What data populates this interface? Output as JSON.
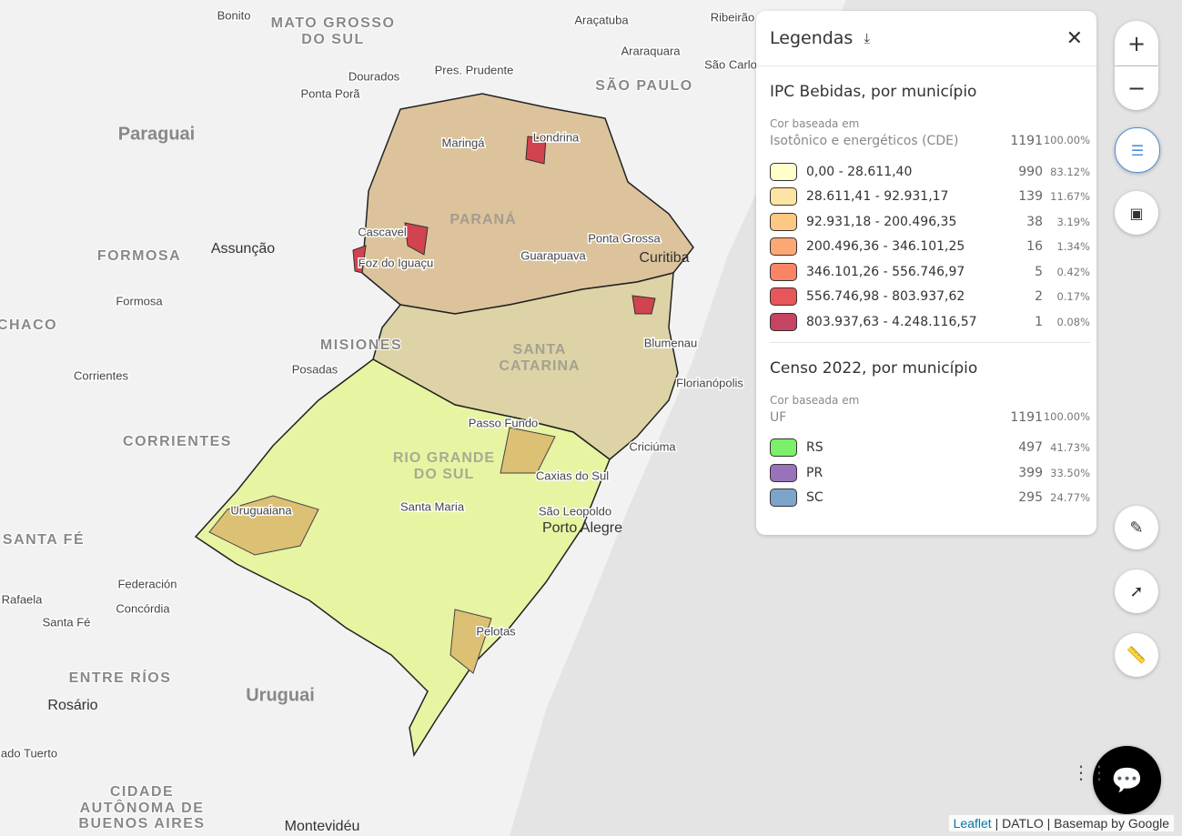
{
  "map": {
    "labels": [
      "Bonito",
      "MATO GROSSO",
      "DO SUL",
      "Araçatuba",
      "Ribeirão",
      "Araraquara",
      "São Carlo",
      "Dourados",
      "Pres. Prudente",
      "Ponta Porã",
      "SÃO PAULO",
      "Paraguai",
      "Assunção",
      "FORMOSA",
      "Formosa",
      "CHACO",
      "MISIONES",
      "Posadas",
      "Corrientes",
      "CORRIENTES",
      "SANTA FÉ",
      "Federación",
      "Concórdia",
      "Rafaela",
      "Santa Fé",
      "ENTRE RÍOS",
      "Rosário",
      "Uruguai",
      "ado Tuerto",
      "CIDADE",
      "AUTÔNOMA DE",
      "BUENOS AIRES",
      "Montevidéu",
      "Maringá",
      "Londrina",
      "Cascavel",
      "Foz do Iguaçu",
      "PARANÁ",
      "Ponta Grossa",
      "Guarapuava",
      "Curitiba",
      "Blumenau",
      "SANTA",
      "CATARINA",
      "Florianópolis",
      "Passo Fundo",
      "RIO GRANDE",
      "DO SUL",
      "Criciúma",
      "Caxias do Sul",
      "Uruguaiana",
      "Santa Maria",
      "São Leopoldo",
      "Porto Alegre",
      "Pelotas"
    ]
  },
  "legend": {
    "title": "Legendas",
    "layers": [
      {
        "title": "IPC Bebidas, por município",
        "based_on": "Cor baseada em",
        "field": "Isotônico e energéticos (CDE)",
        "total": 1191,
        "total_percent": "100.00%",
        "classes": [
          {
            "label": "0,00 - 28.611,40",
            "count": 990,
            "percent": "83.12%",
            "color": "#ffffcc"
          },
          {
            "label": "28.611,41 - 92.931,17",
            "count": 139,
            "percent": "11.67%",
            "color": "#fde4a2"
          },
          {
            "label": "92.931,18 - 200.496,35",
            "count": 38,
            "percent": "3.19%",
            "color": "#fdc881"
          },
          {
            "label": "200.496,36 - 346.101,25",
            "count": 16,
            "percent": "1.34%",
            "color": "#fca874"
          },
          {
            "label": "346.101,26 - 556.746,97",
            "count": 5,
            "percent": "0.42%",
            "color": "#f98466"
          },
          {
            "label": "556.746,98 - 803.937,62",
            "count": 2,
            "percent": "0.17%",
            "color": "#e8565a"
          },
          {
            "label": "803.937,63 - 4.248.116,57",
            "count": 1,
            "percent": "0.08%",
            "color": "#c44462"
          }
        ]
      },
      {
        "title": "Censo 2022, por município",
        "based_on": "Cor baseada em",
        "field": "UF",
        "total": 1191,
        "total_percent": "100.00%",
        "classes": [
          {
            "label": "RS",
            "count": 497,
            "percent": "41.73%",
            "color": "#7cf06c"
          },
          {
            "label": "PR",
            "count": 399,
            "percent": "33.50%",
            "color": "#9a72bb"
          },
          {
            "label": "SC",
            "count": 295,
            "percent": "24.77%",
            "color": "#7ea4c9"
          }
        ]
      }
    ]
  },
  "attribution": {
    "link": "Leaflet",
    "text": "| DATLO | Basemap by Google"
  }
}
